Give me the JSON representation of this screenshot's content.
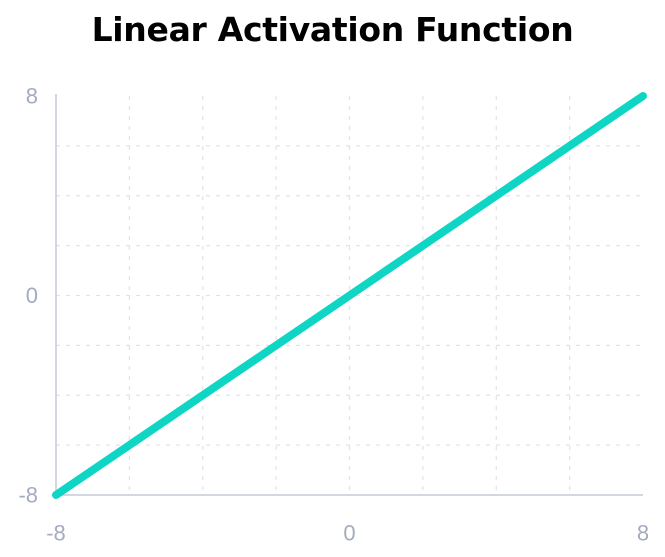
{
  "chart_data": {
    "type": "line",
    "title": "Linear Activation Function",
    "xlabel": "",
    "ylabel": "",
    "xlim": [
      -8,
      8
    ],
    "ylim": [
      -8,
      8
    ],
    "x_ticks": [
      -8,
      0,
      8
    ],
    "y_ticks": [
      -8,
      0,
      8
    ],
    "grid": true,
    "series": [
      {
        "x": [
          -8,
          8
        ],
        "y": [
          -8,
          8
        ],
        "color": "#0fd6c4"
      }
    ]
  },
  "colors": {
    "line": "#0fd6c4",
    "grid": "#dfe3ea",
    "axis": "#c4cad6",
    "tick_text": "#a3acbf"
  }
}
